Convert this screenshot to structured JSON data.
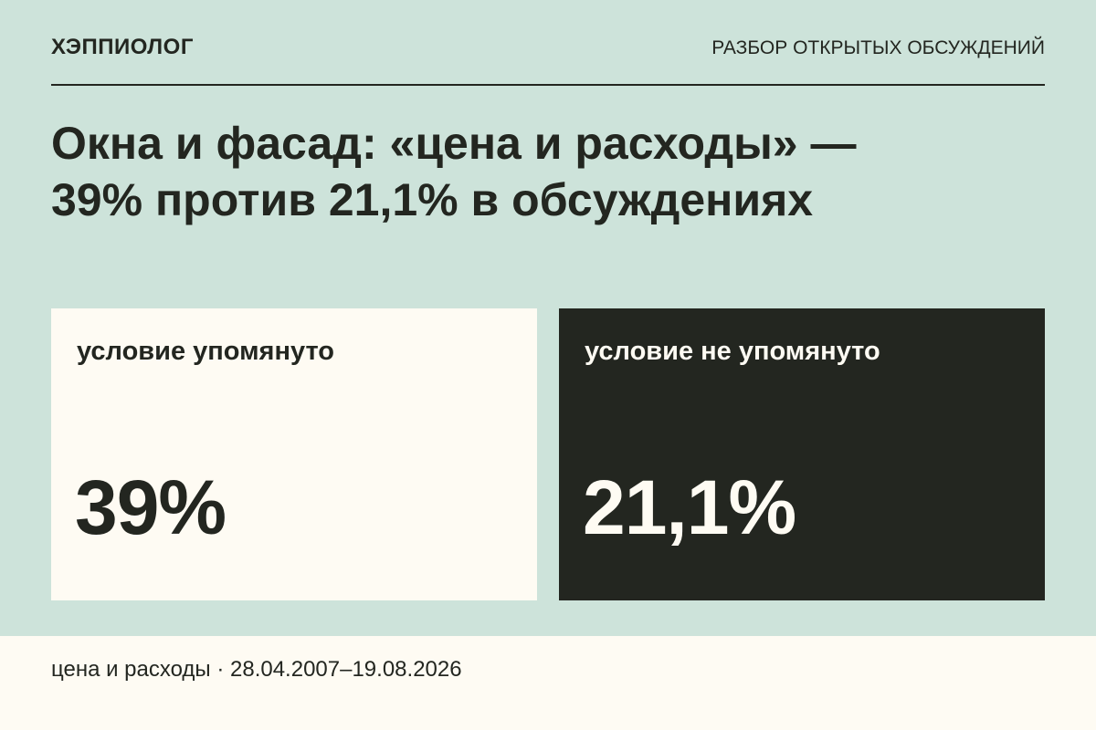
{
  "header": {
    "brand": "ХЭППИОЛОГ",
    "section": "РАЗБОР ОТКРЫТЫХ ОБСУЖДЕНИЙ"
  },
  "headline": {
    "line1": "Окна и фасад: «цена и расходы» —",
    "line2": "39% против 21,1% в обсуждениях"
  },
  "cards": [
    {
      "label": "условие упомянуто",
      "value": "39%",
      "theme": "light"
    },
    {
      "label": "условие не упомянуто",
      "value": "21,1%",
      "theme": "dark"
    }
  ],
  "footer": {
    "text": "цена и расходы · 28.04.2007–19.08.2026"
  },
  "colors": {
    "background": "#cde3da",
    "light_card": "#fefbf3",
    "dark_card": "#232620",
    "text_dark": "#232620",
    "text_light": "#fefbf3"
  }
}
